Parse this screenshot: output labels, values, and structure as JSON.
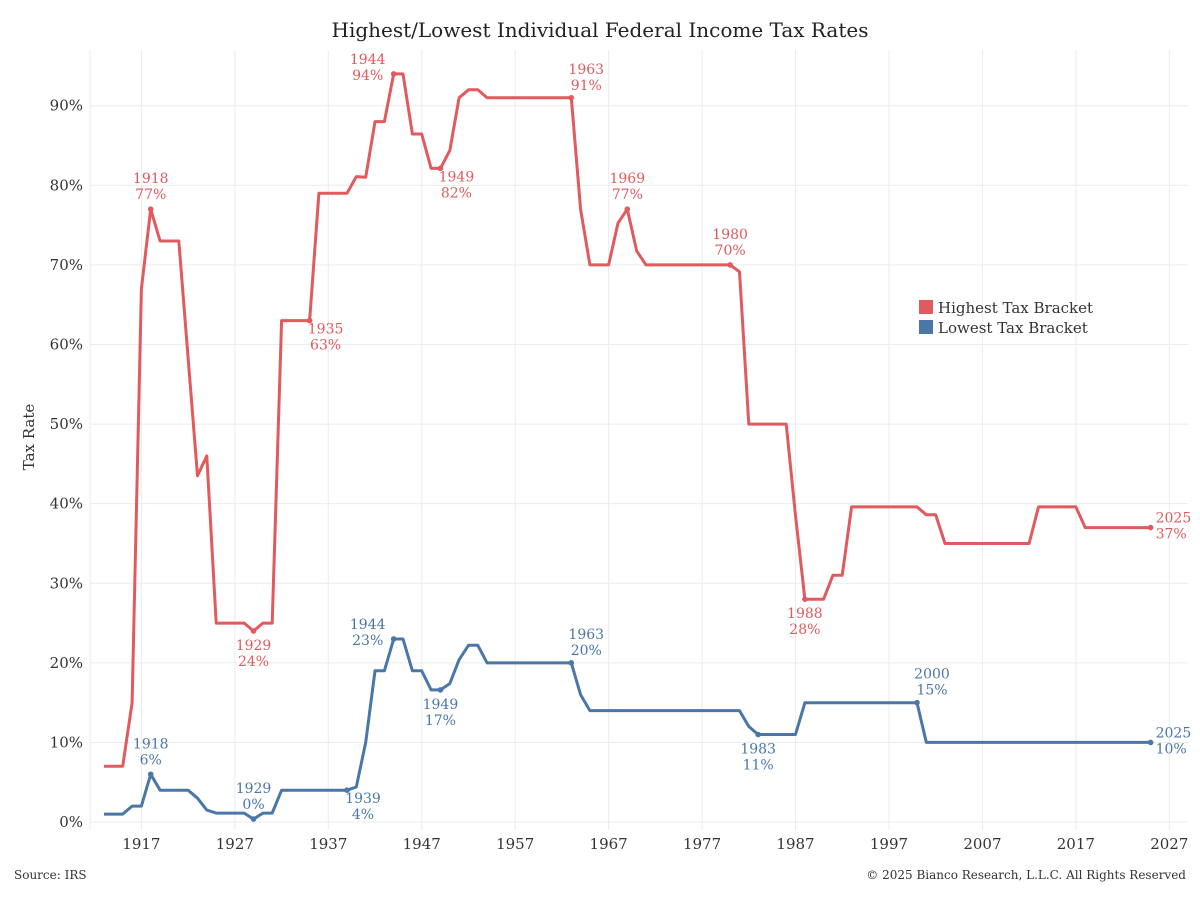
{
  "title": "Highest/Lowest Individual Federal Income Tax Rates",
  "source": "Source: IRS",
  "copyright": "© 2025 Bianco Research, L.L.C. All Rights Reserved",
  "colors": {
    "highest": "#e05a5e",
    "lowest": "#4a76a8",
    "grid": "#ececec",
    "axis_text": "#333333"
  },
  "chart_data": {
    "type": "line",
    "title": "Highest/Lowest Individual Federal Income Tax Rates",
    "xlabel": "",
    "ylabel": "Tax Rate",
    "xlim": [
      1911.5,
      2029
    ],
    "ylim": [
      -1,
      97
    ],
    "x_ticks": [
      1917,
      1927,
      1937,
      1947,
      1957,
      1967,
      1977,
      1987,
      1997,
      2007,
      2017,
      2027
    ],
    "y_ticks": [
      0,
      10,
      20,
      30,
      40,
      50,
      60,
      70,
      80,
      90
    ],
    "y_tick_labels": [
      "0%",
      "10%",
      "20%",
      "30%",
      "40%",
      "50%",
      "60%",
      "70%",
      "80%",
      "90%"
    ],
    "grid": true,
    "legend": "right",
    "series": [
      {
        "name": "Highest Tax Bracket",
        "color": "#e05a5e",
        "points": [
          [
            1913,
            7
          ],
          [
            1915,
            7
          ],
          [
            1916,
            15
          ],
          [
            1917,
            67
          ],
          [
            1918,
            77
          ],
          [
            1919,
            73
          ],
          [
            1921,
            73
          ],
          [
            1923,
            43.5
          ],
          [
            1924,
            46
          ],
          [
            1925,
            25
          ],
          [
            1928,
            25
          ],
          [
            1929,
            24
          ],
          [
            1930,
            25
          ],
          [
            1931,
            25
          ],
          [
            1932,
            63
          ],
          [
            1935,
            63
          ],
          [
            1936,
            79
          ],
          [
            1939,
            79
          ],
          [
            1940,
            81.1
          ],
          [
            1941,
            81
          ],
          [
            1942,
            88
          ],
          [
            1943,
            88
          ],
          [
            1944,
            94
          ],
          [
            1945,
            94
          ],
          [
            1946,
            86.45
          ],
          [
            1947,
            86.45
          ],
          [
            1948,
            82.13
          ],
          [
            1949,
            82.13
          ],
          [
            1950,
            84.36
          ],
          [
            1951,
            91
          ],
          [
            1952,
            92
          ],
          [
            1953,
            92
          ],
          [
            1954,
            91
          ],
          [
            1963,
            91
          ],
          [
            1964,
            77
          ],
          [
            1965,
            70
          ],
          [
            1967,
            70
          ],
          [
            1968,
            75.25
          ],
          [
            1969,
            77
          ],
          [
            1970,
            71.75
          ],
          [
            1971,
            70
          ],
          [
            1980,
            70
          ],
          [
            1981,
            69.13
          ],
          [
            1982,
            50
          ],
          [
            1986,
            50
          ],
          [
            1987,
            38.5
          ],
          [
            1988,
            28
          ],
          [
            1990,
            28
          ],
          [
            1991,
            31
          ],
          [
            1992,
            31
          ],
          [
            1993,
            39.6
          ],
          [
            2000,
            39.6
          ],
          [
            2001,
            38.6
          ],
          [
            2002,
            38.6
          ],
          [
            2003,
            35
          ],
          [
            2012,
            35
          ],
          [
            2013,
            39.6
          ],
          [
            2017,
            39.6
          ],
          [
            2018,
            37
          ],
          [
            2025,
            37
          ]
        ],
        "annotations": [
          {
            "year": "1918",
            "value": "77%",
            "x": 1918,
            "y": 77,
            "pos": "above"
          },
          {
            "year": "1929",
            "value": "24%",
            "x": 1929,
            "y": 24,
            "pos": "below"
          },
          {
            "year": "1935",
            "value": "63%",
            "x": 1935,
            "y": 63,
            "pos": "below-right"
          },
          {
            "year": "1944",
            "value": "94%",
            "x": 1944,
            "y": 94,
            "pos": "above-left"
          },
          {
            "year": "1949",
            "value": "82%",
            "x": 1949,
            "y": 82.13,
            "pos": "below-right"
          },
          {
            "year": "1963",
            "value": "91%",
            "x": 1963,
            "y": 91,
            "pos": "above-right"
          },
          {
            "year": "1969",
            "value": "77%",
            "x": 1969,
            "y": 77,
            "pos": "above"
          },
          {
            "year": "1980",
            "value": "70%",
            "x": 1980,
            "y": 70,
            "pos": "above"
          },
          {
            "year": "1988",
            "value": "28%",
            "x": 1988,
            "y": 28,
            "pos": "below"
          },
          {
            "year": "2025",
            "value": "37%",
            "x": 2025,
            "y": 37,
            "pos": "right"
          }
        ]
      },
      {
        "name": "Lowest Tax Bracket",
        "color": "#4a76a8",
        "points": [
          [
            1913,
            1
          ],
          [
            1915,
            1
          ],
          [
            1916,
            2
          ],
          [
            1917,
            2
          ],
          [
            1918,
            6
          ],
          [
            1919,
            4
          ],
          [
            1922,
            4
          ],
          [
            1923,
            3
          ],
          [
            1924,
            1.5
          ],
          [
            1925,
            1.125
          ],
          [
            1928,
            1.125
          ],
          [
            1929,
            0.375
          ],
          [
            1930,
            1.125
          ],
          [
            1931,
            1.125
          ],
          [
            1932,
            4
          ],
          [
            1939,
            4
          ],
          [
            1940,
            4.4
          ],
          [
            1941,
            10
          ],
          [
            1942,
            19
          ],
          [
            1943,
            19
          ],
          [
            1944,
            23
          ],
          [
            1945,
            23
          ],
          [
            1946,
            19
          ],
          [
            1947,
            19
          ],
          [
            1948,
            16.6
          ],
          [
            1949,
            16.6
          ],
          [
            1950,
            17.4
          ],
          [
            1951,
            20.4
          ],
          [
            1952,
            22.2
          ],
          [
            1953,
            22.2
          ],
          [
            1954,
            20
          ],
          [
            1963,
            20
          ],
          [
            1964,
            16
          ],
          [
            1965,
            14
          ],
          [
            1981,
            14
          ],
          [
            1982,
            12
          ],
          [
            1983,
            11
          ],
          [
            1987,
            11
          ],
          [
            1988,
            15
          ],
          [
            2000,
            15
          ],
          [
            2001,
            10
          ],
          [
            2025,
            10
          ]
        ],
        "annotations": [
          {
            "year": "1918",
            "value": "6%",
            "x": 1918,
            "y": 6,
            "pos": "above"
          },
          {
            "year": "1929",
            "value": "0%",
            "x": 1929,
            "y": 0.375,
            "pos": "above"
          },
          {
            "year": "1939",
            "value": "4%",
            "x": 1939,
            "y": 4,
            "pos": "below-right"
          },
          {
            "year": "1944",
            "value": "23%",
            "x": 1944,
            "y": 23,
            "pos": "above-left"
          },
          {
            "year": "1949",
            "value": "17%",
            "x": 1949,
            "y": 16.6,
            "pos": "below"
          },
          {
            "year": "1963",
            "value": "20%",
            "x": 1963,
            "y": 20,
            "pos": "above-right"
          },
          {
            "year": "1983",
            "value": "11%",
            "x": 1983,
            "y": 11,
            "pos": "below"
          },
          {
            "year": "2000",
            "value": "15%",
            "x": 2000,
            "y": 15,
            "pos": "above-right"
          },
          {
            "year": "2025",
            "value": "10%",
            "x": 2025,
            "y": 10,
            "pos": "right"
          }
        ]
      }
    ]
  }
}
